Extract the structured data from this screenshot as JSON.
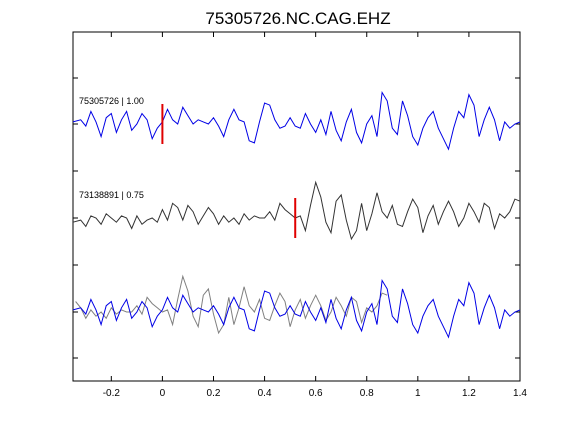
{
  "chart_data": {
    "type": "line",
    "title": "75305726.NC.CAG.EHZ",
    "xlim": [
      -0.35,
      1.4
    ],
    "x_ticks": [
      -0.2,
      0,
      0.2,
      0.4,
      0.6,
      0.8,
      1,
      1.2,
      1.4
    ],
    "x_tick_labels": [
      "-0.2",
      "0",
      "0.2",
      "0.4",
      "0.6",
      "0.8",
      "1",
      "1.2",
      "1.4"
    ],
    "grid": false,
    "colors": {
      "master": "#0000e6",
      "correlated": "#333333",
      "overlay_correlated": "#808080",
      "pick": "#e00000"
    },
    "annotations": [
      {
        "text": "75305726 | 1.00",
        "trace": "master"
      },
      {
        "text": "73138891 | 0.75",
        "trace": "correlated"
      }
    ],
    "picks": [
      {
        "trace": "master",
        "x": 0.0
      },
      {
        "trace": "correlated",
        "x": 0.52
      }
    ],
    "series": [
      {
        "id": "master",
        "x": [
          -0.35,
          -0.32,
          -0.3,
          -0.28,
          -0.26,
          -0.24,
          -0.22,
          -0.2,
          -0.18,
          -0.16,
          -0.14,
          -0.12,
          -0.1,
          -0.08,
          -0.06,
          -0.04,
          -0.02,
          0.0,
          0.02,
          0.04,
          0.06,
          0.08,
          0.1,
          0.12,
          0.14,
          0.16,
          0.18,
          0.2,
          0.22,
          0.24,
          0.26,
          0.28,
          0.3,
          0.32,
          0.34,
          0.36,
          0.38,
          0.4,
          0.42,
          0.44,
          0.46,
          0.48,
          0.5,
          0.52,
          0.54,
          0.56,
          0.58,
          0.6,
          0.62,
          0.64,
          0.66,
          0.68,
          0.7,
          0.72,
          0.74,
          0.76,
          0.78,
          0.8,
          0.82,
          0.84,
          0.86,
          0.88,
          0.9,
          0.92,
          0.94,
          0.96,
          0.98,
          1.0,
          1.02,
          1.04,
          1.06,
          1.08,
          1.1,
          1.12,
          1.14,
          1.16,
          1.18,
          1.2,
          1.22,
          1.24,
          1.26,
          1.28,
          1.3,
          1.32,
          1.34,
          1.36,
          1.38,
          1.4
        ],
        "y": [
          0.05,
          0.1,
          -0.05,
          0.3,
          0.05,
          -0.3,
          0.15,
          0.25,
          -0.2,
          0.1,
          0.3,
          -0.15,
          0.0,
          0.25,
          0.1,
          -0.35,
          -0.1,
          0.05,
          0.35,
          0.1,
          0.0,
          0.4,
          0.2,
          0.0,
          0.1,
          0.05,
          0.0,
          0.15,
          -0.05,
          -0.3,
          0.1,
          0.35,
          0.1,
          0.05,
          -0.4,
          -0.45,
          0.05,
          0.5,
          0.45,
          0.1,
          -0.1,
          -0.05,
          0.15,
          -0.05,
          -0.1,
          0.25,
          0.0,
          -0.2,
          0.1,
          -0.25,
          0.3,
          -0.15,
          -0.4,
          0.05,
          0.35,
          -0.2,
          -0.45,
          0.0,
          0.2,
          -0.3,
          0.75,
          0.55,
          -0.1,
          -0.25,
          0.55,
          0.2,
          -0.3,
          -0.5,
          -0.1,
          0.15,
          0.3,
          -0.1,
          -0.35,
          -0.6,
          -0.1,
          0.3,
          0.15,
          0.7,
          0.45,
          -0.3,
          0.1,
          0.4,
          0.1,
          -0.4,
          0.05,
          -0.1,
          0.0,
          0.05
        ]
      },
      {
        "id": "correlated",
        "x": [
          -0.35,
          -0.32,
          -0.3,
          -0.28,
          -0.26,
          -0.24,
          -0.22,
          -0.2,
          -0.18,
          -0.16,
          -0.14,
          -0.12,
          -0.1,
          -0.08,
          -0.06,
          -0.04,
          -0.02,
          0.0,
          0.02,
          0.04,
          0.06,
          0.08,
          0.1,
          0.12,
          0.14,
          0.16,
          0.18,
          0.2,
          0.22,
          0.24,
          0.26,
          0.28,
          0.3,
          0.32,
          0.34,
          0.36,
          0.38,
          0.4,
          0.42,
          0.44,
          0.46,
          0.48,
          0.5,
          0.52,
          0.54,
          0.56,
          0.58,
          0.6,
          0.62,
          0.64,
          0.66,
          0.68,
          0.7,
          0.72,
          0.74,
          0.76,
          0.78,
          0.8,
          0.82,
          0.84,
          0.86,
          0.88,
          0.9,
          0.92,
          0.94,
          0.96,
          0.98,
          1.0,
          1.02,
          1.04,
          1.06,
          1.08,
          1.1,
          1.12,
          1.14,
          1.16,
          1.18,
          1.2,
          1.22,
          1.24,
          1.26,
          1.28,
          1.3,
          1.32,
          1.34,
          1.36,
          1.38,
          1.4
        ],
        "y": [
          -0.1,
          -0.05,
          -0.2,
          0.05,
          0.0,
          -0.15,
          0.1,
          0.0,
          -0.1,
          0.05,
          0.0,
          -0.25,
          0.05,
          -0.15,
          -0.05,
          0.0,
          -0.1,
          0.2,
          -0.05,
          0.35,
          0.25,
          -0.05,
          0.3,
          0.15,
          -0.15,
          0.05,
          0.25,
          0.1,
          -0.15,
          0.05,
          -0.1,
          0.0,
          -0.15,
          0.1,
          -0.05,
          0.05,
          0.0,
          0.0,
          0.15,
          -0.05,
          0.35,
          0.2,
          0.1,
          0.0,
          0.05,
          -0.3,
          0.3,
          0.85,
          0.5,
          -0.1,
          -0.35,
          0.4,
          0.55,
          -0.05,
          -0.5,
          -0.3,
          0.35,
          -0.3,
          0.1,
          0.6,
          0.15,
          0.0,
          0.3,
          -0.15,
          -0.2,
          0.15,
          0.45,
          0.25,
          -0.35,
          0.05,
          0.3,
          -0.15,
          0.15,
          0.4,
          0.15,
          -0.2,
          0.0,
          0.35,
          0.15,
          -0.1,
          0.35,
          0.25,
          -0.25,
          0.1,
          0.0,
          0.15,
          0.45,
          0.4
        ]
      }
    ]
  }
}
